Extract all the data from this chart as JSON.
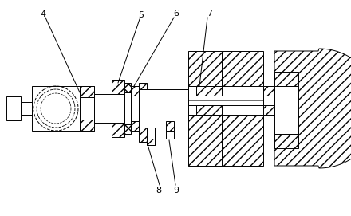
{
  "fig_width": 4.4,
  "fig_height": 2.71,
  "dpi": 100,
  "bg_color": "#ffffff",
  "line_color": "#000000"
}
